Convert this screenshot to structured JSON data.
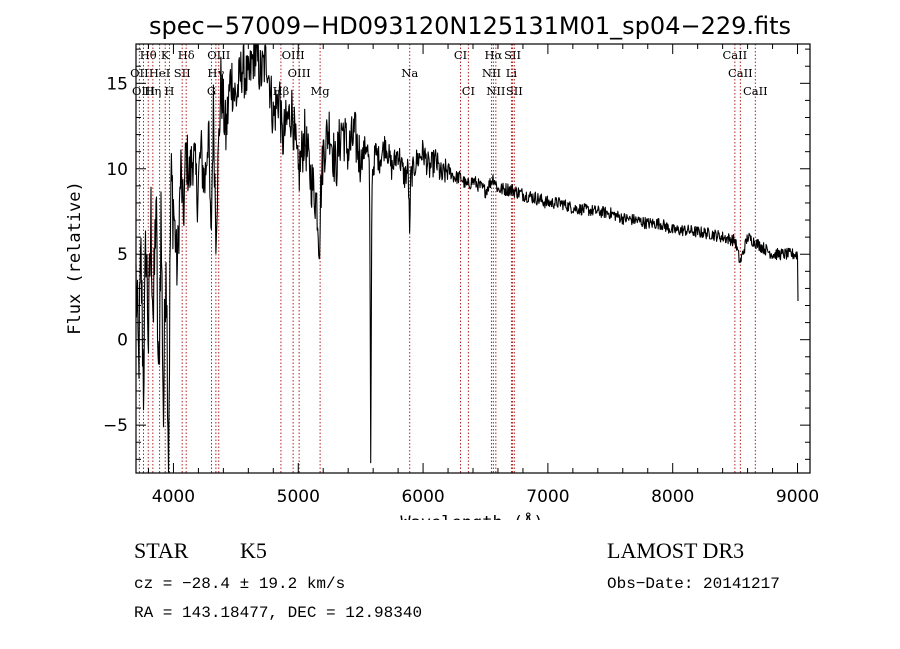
{
  "chart_data": {
    "type": "line",
    "title": "spec−57009−HD093120N125131M01_sp04−229.fits",
    "xlabel": "Wavelength (Å)",
    "ylabel": "Flux (relative)",
    "xlim": [
      3700,
      9100
    ],
    "ylim": [
      -7.8,
      17.3
    ],
    "xticks": [
      4000,
      5000,
      6000,
      7000,
      8000,
      9000
    ],
    "xtick_labels": [
      "4000",
      "5000",
      "6000",
      "7000",
      "8000",
      "9000"
    ],
    "yticks": [
      -5,
      0,
      5,
      10,
      15
    ],
    "ytick_labels": [
      "−5",
      "0",
      "5",
      "10",
      "15"
    ],
    "line_color": "#000000",
    "marker_color": "#b22222",
    "spectral_lines": [
      {
        "label": "Hθ",
        "wavelength": 3798,
        "row": 1
      },
      {
        "label": "K",
        "wavelength": 3934,
        "row": 1
      },
      {
        "label": "Hδ",
        "wavelength": 4102,
        "row": 1
      },
      {
        "label": "OIII",
        "wavelength": 4363,
        "row": 1
      },
      {
        "label": "OIII",
        "wavelength": 4959,
        "row": 1
      },
      {
        "label": "CI",
        "wavelength": 6300,
        "row": 1
      },
      {
        "label": "Hα",
        "wavelength": 6563,
        "row": 1
      },
      {
        "label": "SII",
        "wavelength": 6717,
        "row": 1
      },
      {
        "label": "CaII",
        "wavelength": 8498,
        "row": 1
      },
      {
        "label": "OII",
        "wavelength": 3727,
        "row": 2
      },
      {
        "label": "HeI",
        "wavelength": 3889,
        "row": 2
      },
      {
        "label": "SII",
        "wavelength": 4070,
        "row": 2
      },
      {
        "label": "Hγ",
        "wavelength": 4340,
        "row": 2
      },
      {
        "label": "OIII",
        "wavelength": 5007,
        "row": 2
      },
      {
        "label": "Na",
        "wavelength": 5893,
        "row": 2
      },
      {
        "label": "NII",
        "wavelength": 6548,
        "row": 2
      },
      {
        "label": "Li",
        "wavelength": 6708,
        "row": 2
      },
      {
        "label": "CaII",
        "wavelength": 8542,
        "row": 2
      },
      {
        "label": "OIII",
        "wavelength": 3760,
        "row": 3
      },
      {
        "label": "Hη",
        "wavelength": 3835,
        "row": 3
      },
      {
        "label": "H",
        "wavelength": 3968,
        "row": 3
      },
      {
        "label": "G",
        "wavelength": 4305,
        "row": 3
      },
      {
        "label": "Hβ",
        "wavelength": 4861,
        "row": 3
      },
      {
        "label": "Mg",
        "wavelength": 5175,
        "row": 3
      },
      {
        "label": "CI",
        "wavelength": 6363,
        "row": 3
      },
      {
        "label": "NII",
        "wavelength": 6583,
        "row": 3
      },
      {
        "label": "SII",
        "wavelength": 6731,
        "row": 3
      },
      {
        "label": "CaII",
        "wavelength": 8662,
        "row": 3
      }
    ],
    "series": [
      {
        "name": "flux",
        "x": [
          3700,
          3720,
          3740,
          3760,
          3780,
          3800,
          3820,
          3840,
          3860,
          3880,
          3900,
          3920,
          3940,
          3960,
          3980,
          4000,
          4030,
          4060,
          4080,
          4100,
          4130,
          4160,
          4190,
          4220,
          4250,
          4280,
          4300,
          4320,
          4340,
          4380,
          4420,
          4460,
          4500,
          4550,
          4600,
          4650,
          4700,
          4750,
          4800,
          4850,
          4870,
          4900,
          4950,
          5000,
          5050,
          5100,
          5150,
          5170,
          5180,
          5200,
          5250,
          5300,
          5350,
          5400,
          5450,
          5500,
          5550,
          5570,
          5575,
          5580,
          5590,
          5620,
          5650,
          5700,
          5750,
          5800,
          5850,
          5880,
          5890,
          5895,
          5900,
          5950,
          6000,
          6050,
          6100,
          6150,
          6200,
          6250,
          6300,
          6350,
          6400,
          6500,
          6563,
          6600,
          6700,
          6800,
          6900,
          7000,
          7100,
          7200,
          7300,
          7400,
          7500,
          7600,
          7700,
          7800,
          7900,
          8000,
          8100,
          8200,
          8300,
          8400,
          8500,
          8540,
          8600,
          8700,
          8800,
          8900,
          9000,
          9005
        ],
        "values": [
          3.5,
          -1.5,
          4.5,
          -2.5,
          6.0,
          0.0,
          7.0,
          1.0,
          8.5,
          -3.5,
          7.5,
          -4.5,
          6.0,
          -6.5,
          9.0,
          8.0,
          4.0,
          10.0,
          7.0,
          11.0,
          9.5,
          11.0,
          8.5,
          11.0,
          9.0,
          12.5,
          5.5,
          13.5,
          6.5,
          15.0,
          12.0,
          15.5,
          14.0,
          16.0,
          15.0,
          17.0,
          15.5,
          16.5,
          13.0,
          14.5,
          11.5,
          12.5,
          13.5,
          9.5,
          12.0,
          9.5,
          8.0,
          5.5,
          8.5,
          11.0,
          12.5,
          10.0,
          12.5,
          11.0,
          12.0,
          10.5,
          11.5,
          10.0,
          3.0,
          -7.2,
          9.5,
          11.0,
          10.5,
          11.5,
          10.0,
          11.0,
          9.5,
          10.0,
          7.0,
          6.0,
          9.5,
          10.5,
          11.0,
          10.0,
          10.5,
          9.5,
          10.0,
          9.5,
          9.5,
          9.0,
          9.3,
          8.7,
          9.5,
          8.8,
          8.8,
          8.5,
          8.3,
          8.0,
          8.0,
          7.7,
          7.6,
          7.5,
          7.4,
          7.1,
          7.0,
          6.8,
          6.8,
          6.4,
          6.4,
          6.3,
          6.2,
          6.0,
          5.8,
          4.5,
          6.0,
          5.5,
          5.0,
          5.0,
          5.0,
          1.5
        ]
      }
    ]
  },
  "info": {
    "object_type": "STAR",
    "subclass": "K5",
    "survey": "LAMOST DR3",
    "cz": "cz = −28.4 ± 19.2 km/s",
    "obs_date": "Obs−Date: 20141217",
    "coords": "RA = 143.18477, DEC =  12.98340"
  }
}
